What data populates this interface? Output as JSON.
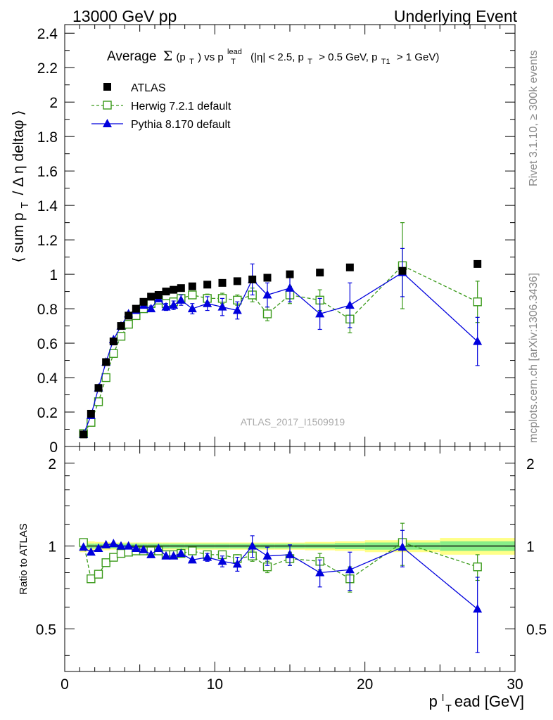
{
  "header": {
    "left": "13000 GeV pp",
    "right": "Underlying Event"
  },
  "side_labels": {
    "rivet": "Rivet 3.1.10, ≥ 300k events",
    "mcplots": "mcplots.cern.ch [arXiv:1306.3436]"
  },
  "watermark": "ATLAS_2017_I1509919",
  "colors": {
    "atlas": "#000000",
    "herwig": "#3a9a1a",
    "pythia": "#0000dd",
    "band_outer": "#ffff88",
    "band_inner": "#88ee88"
  },
  "chart_data": [
    {
      "type": "scatter",
      "title": "Average Σ(pT) vs pTlead (|η| < 2.5, pT > 0.5 GeV, pT1 > 1 GeV)",
      "title_parts": {
        "t1": "Average",
        "sigma": "Σ",
        "t2": "(p",
        "t2sub": "T",
        "t3": ") vs p",
        "t3sup": "lead",
        "t3sub": "T",
        "t4": "(|η| < 2.5, p",
        "t4sub": "T",
        "t5": "> 0.5 GeV, p",
        "t5sub": "T1",
        "t6": "> 1 GeV)"
      },
      "ylabel_parts": {
        "a": "⟨ sum p",
        "sub": "T",
        "b": "/ Δ η deltaφ ⟩"
      },
      "xlim": [
        0,
        30
      ],
      "ylim": [
        0,
        2.45
      ],
      "y_ticks": [
        0,
        0.2,
        0.4,
        0.6,
        0.8,
        1,
        1.2,
        1.4,
        1.6,
        1.8,
        2,
        2.2,
        2.4
      ],
      "y_tick_labels": [
        "0",
        "0.2",
        "0.4",
        "0.6",
        "0.8",
        "1",
        "1.2",
        "1.4",
        "1.6",
        "1.8",
        "2",
        "2.2",
        "2.4"
      ],
      "legend": {
        "placement": "top-left",
        "entries": [
          "ATLAS",
          "Herwig 7.2.1 default",
          "Pythia 8.170 default"
        ]
      },
      "series": [
        {
          "name": "ATLAS",
          "marker": "filled-square",
          "x": [
            1.25,
            1.75,
            2.25,
            2.75,
            3.25,
            3.75,
            4.25,
            4.75,
            5.25,
            5.75,
            6.25,
            6.75,
            7.25,
            7.75,
            8.5,
            9.5,
            10.5,
            11.5,
            12.5,
            13.5,
            15,
            17,
            19,
            22.5,
            27.5
          ],
          "y": [
            0.07,
            0.19,
            0.34,
            0.49,
            0.61,
            0.7,
            0.76,
            0.8,
            0.84,
            0.87,
            0.88,
            0.9,
            0.91,
            0.92,
            0.93,
            0.94,
            0.95,
            0.96,
            0.97,
            0.98,
            1.0,
            1.01,
            1.04,
            1.02,
            1.06
          ]
        },
        {
          "name": "Herwig 7.2.1 default",
          "marker": "open-square",
          "x": [
            1.25,
            1.75,
            2.25,
            2.75,
            3.25,
            3.75,
            4.25,
            4.75,
            5.25,
            5.75,
            6.25,
            6.75,
            7.25,
            7.75,
            8.5,
            9.5,
            10.5,
            11.5,
            12.5,
            13.5,
            15,
            17,
            19,
            22.5,
            27.5
          ],
          "y": [
            0.075,
            0.14,
            0.26,
            0.4,
            0.54,
            0.64,
            0.71,
            0.76,
            0.8,
            0.83,
            0.85,
            0.83,
            0.84,
            0.86,
            0.88,
            0.86,
            0.86,
            0.85,
            0.88,
            0.77,
            0.88,
            0.85,
            0.74,
            1.05,
            0.84
          ],
          "err": [
            0.004,
            0.005,
            0.006,
            0.008,
            0.009,
            0.01,
            0.01,
            0.012,
            0.012,
            0.013,
            0.015,
            0.015,
            0.018,
            0.02,
            0.02,
            0.025,
            0.03,
            0.03,
            0.04,
            0.04,
            0.05,
            0.06,
            0.08,
            0.25,
            0.12
          ]
        },
        {
          "name": "Pythia 8.170 default",
          "marker": "filled-triangle",
          "x": [
            1.25,
            1.75,
            2.25,
            2.75,
            3.25,
            3.75,
            4.25,
            4.75,
            5.25,
            5.75,
            6.25,
            6.75,
            7.25,
            7.75,
            8.5,
            9.5,
            10.5,
            11.5,
            12.5,
            13.5,
            15,
            17,
            19,
            22.5,
            27.5
          ],
          "y": [
            0.07,
            0.18,
            0.34,
            0.49,
            0.62,
            0.7,
            0.77,
            0.79,
            0.82,
            0.8,
            0.86,
            0.81,
            0.82,
            0.85,
            0.8,
            0.83,
            0.81,
            0.79,
            0.97,
            0.88,
            0.92,
            0.77,
            0.82,
            1.01,
            0.61
          ],
          "err": [
            0.004,
            0.006,
            0.008,
            0.01,
            0.01,
            0.012,
            0.012,
            0.014,
            0.015,
            0.016,
            0.02,
            0.02,
            0.025,
            0.03,
            0.03,
            0.04,
            0.05,
            0.05,
            0.09,
            0.07,
            0.08,
            0.09,
            0.13,
            0.14,
            0.14
          ]
        }
      ]
    },
    {
      "type": "scatter",
      "title": "",
      "ylabel": "Ratio to ATLAS",
      "xlabel": "p",
      "xlabel_parts": {
        "a": "p",
        "sub": "T",
        "sup": "l",
        "b": "ead [GeV]"
      },
      "xlim": [
        0,
        30
      ],
      "ylim": [
        0.35,
        2.3
      ],
      "x_ticks": [
        0,
        10,
        20,
        30
      ],
      "x_tick_labels": [
        "0",
        "10",
        "20",
        "30"
      ],
      "y_ticks": [
        0.5,
        1,
        2
      ],
      "y_tick_labels": [
        "0.5",
        "1",
        "2"
      ],
      "reference_line": 1,
      "band": {
        "name": "ATLAS uncertainty",
        "x_edges": [
          1,
          1.5,
          2,
          2.5,
          3,
          3.5,
          4,
          4.5,
          5,
          5.5,
          6,
          6.5,
          7,
          7.5,
          8,
          9,
          10,
          11,
          12,
          13,
          14,
          16,
          18,
          20,
          25,
          30
        ],
        "inner": [
          0.02,
          0.02,
          0.02,
          0.02,
          0.02,
          0.02,
          0.02,
          0.02,
          0.02,
          0.02,
          0.02,
          0.02,
          0.02,
          0.02,
          0.02,
          0.02,
          0.02,
          0.02,
          0.02,
          0.02,
          0.02,
          0.02,
          0.025,
          0.03,
          0.04
        ],
        "outer": [
          0.05,
          0.04,
          0.035,
          0.035,
          0.03,
          0.03,
          0.03,
          0.03,
          0.03,
          0.03,
          0.03,
          0.03,
          0.03,
          0.03,
          0.03,
          0.03,
          0.03,
          0.03,
          0.03,
          0.03,
          0.03,
          0.035,
          0.04,
          0.05,
          0.07
        ]
      },
      "series": [
        {
          "name": "Herwig 7.2.1 default",
          "marker": "open-square",
          "x": [
            1.25,
            1.75,
            2.25,
            2.75,
            3.25,
            3.75,
            4.25,
            4.75,
            5.25,
            5.75,
            6.25,
            6.75,
            7.25,
            7.75,
            8.5,
            9.5,
            10.5,
            11.5,
            12.5,
            13.5,
            15,
            17,
            19,
            22.5,
            27.5
          ],
          "y": [
            1.03,
            0.76,
            0.79,
            0.87,
            0.91,
            0.94,
            0.95,
            0.96,
            0.96,
            0.96,
            0.96,
            0.93,
            0.93,
            0.94,
            0.96,
            0.93,
            0.93,
            0.9,
            0.92,
            0.84,
            0.9,
            0.88,
            0.76,
            1.03,
            0.84
          ],
          "err": [
            0.02,
            0.02,
            0.02,
            0.02,
            0.02,
            0.02,
            0.02,
            0.02,
            0.02,
            0.02,
            0.02,
            0.02,
            0.02,
            0.02,
            0.02,
            0.03,
            0.03,
            0.03,
            0.04,
            0.04,
            0.05,
            0.06,
            0.08,
            0.18,
            0.09
          ]
        },
        {
          "name": "Pythia 8.170 default",
          "marker": "filled-triangle",
          "x": [
            1.25,
            1.75,
            2.25,
            2.75,
            3.25,
            3.75,
            4.25,
            4.75,
            5.25,
            5.75,
            6.25,
            6.75,
            7.25,
            7.75,
            8.5,
            9.5,
            10.5,
            11.5,
            12.5,
            13.5,
            15,
            17,
            19,
            22.5,
            27.5
          ],
          "y": [
            0.99,
            0.95,
            0.98,
            1.01,
            1.02,
            1.0,
            1.0,
            0.98,
            0.97,
            0.93,
            0.98,
            0.92,
            0.92,
            0.94,
            0.89,
            0.91,
            0.88,
            0.86,
            1.0,
            0.92,
            0.93,
            0.8,
            0.82,
            0.99,
            0.59
          ],
          "err": [
            0.02,
            0.02,
            0.02,
            0.02,
            0.02,
            0.02,
            0.02,
            0.02,
            0.02,
            0.02,
            0.02,
            0.02,
            0.02,
            0.02,
            0.02,
            0.03,
            0.04,
            0.05,
            0.09,
            0.07,
            0.08,
            0.09,
            0.13,
            0.15,
            0.18
          ]
        }
      ]
    }
  ]
}
